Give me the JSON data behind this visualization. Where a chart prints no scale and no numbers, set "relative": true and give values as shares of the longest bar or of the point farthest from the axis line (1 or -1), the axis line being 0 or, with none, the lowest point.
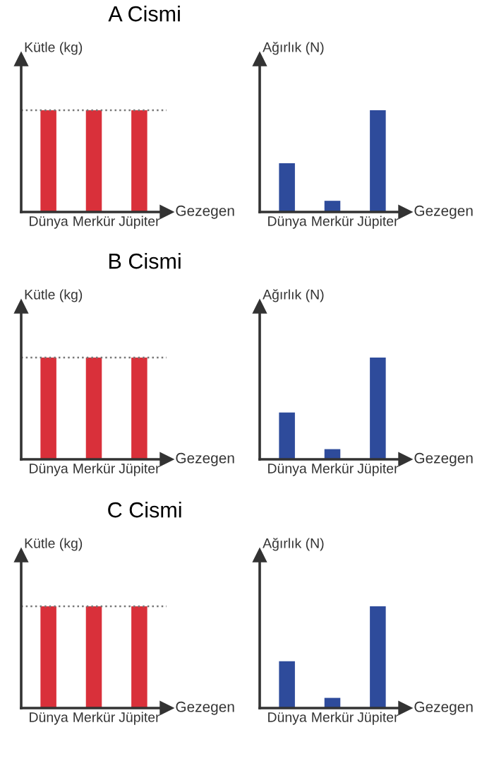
{
  "chart_data": [
    {
      "type": "bar",
      "title": "A Cismi",
      "ylabel": "Kütle (kg)",
      "xlabel": "Gezegen",
      "categories": [
        "Dünya",
        "Merkür",
        "Jüpiter"
      ],
      "values": [
        1,
        1,
        1
      ],
      "color": "#d9303a",
      "relative": true,
      "grid": false,
      "ref_lines": [
        {
          "axis": "y",
          "value": 1,
          "line_style": "dotted",
          "color": "#777777"
        }
      ]
    },
    {
      "type": "bar",
      "ylabel": "Ağırlık (N)",
      "xlabel": "Gezegen",
      "categories": [
        "Dünya",
        "Merkür",
        "Jüpiter"
      ],
      "values": [
        0.48,
        0.11,
        1
      ],
      "color": "#2e4b9b",
      "relative": true,
      "grid": false
    },
    {
      "type": "bar",
      "title": "B Cismi",
      "ylabel": "Kütle (kg)",
      "xlabel": "Gezegen",
      "categories": [
        "Dünya",
        "Merkür",
        "Jüpiter"
      ],
      "values": [
        1,
        1,
        1
      ],
      "color": "#d9303a",
      "relative": true,
      "grid": false,
      "ref_lines": [
        {
          "axis": "y",
          "value": 1,
          "line_style": "dotted",
          "color": "#777777"
        }
      ]
    },
    {
      "type": "bar",
      "ylabel": "Ağırlık (N)",
      "xlabel": "Gezegen",
      "categories": [
        "Dünya",
        "Merkür",
        "Jüpiter"
      ],
      "values": [
        0.46,
        0.1,
        1
      ],
      "color": "#2e4b9b",
      "relative": true,
      "grid": false
    },
    {
      "type": "bar",
      "title": "C Cismi",
      "ylabel": "Kütle (kg)",
      "xlabel": "Gezegen",
      "categories": [
        "Dünya",
        "Merkür",
        "Jüpiter"
      ],
      "values": [
        1,
        1,
        1
      ],
      "color": "#d9303a",
      "relative": true,
      "grid": false,
      "ref_lines": [
        {
          "axis": "y",
          "value": 1,
          "line_style": "dotted",
          "color": "#777777"
        }
      ]
    },
    {
      "type": "bar",
      "ylabel": "Ağırlık (N)",
      "xlabel": "Gezegen",
      "categories": [
        "Dünya",
        "Merkür",
        "Jüpiter"
      ],
      "values": [
        0.46,
        0.1,
        1
      ],
      "color": "#2e4b9b",
      "relative": true,
      "grid": false
    }
  ]
}
